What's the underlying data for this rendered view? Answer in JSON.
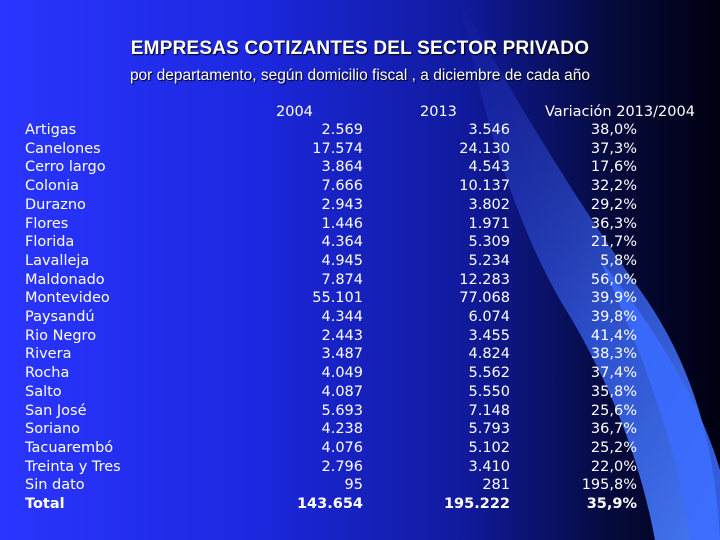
{
  "title": "EMPRESAS COTIZANTES DEL SECTOR PRIVADO",
  "subtitle": "por departamento, según domicilio fiscal , a diciembre de cada año",
  "columns": [
    "2004",
    "2013",
    "Variación 2013/2004"
  ],
  "rows": [
    {
      "dep": "Artigas",
      "a": "2.569",
      "b": "3.546",
      "c": "38,0%"
    },
    {
      "dep": "Canelones",
      "a": "17.574",
      "b": "24.130",
      "c": "37,3%"
    },
    {
      "dep": "Cerro largo",
      "a": "3.864",
      "b": "4.543",
      "c": "17,6%"
    },
    {
      "dep": "Colonia",
      "a": "7.666",
      "b": "10.137",
      "c": "32,2%"
    },
    {
      "dep": "Durazno",
      "a": "2.943",
      "b": "3.802",
      "c": "29,2%"
    },
    {
      "dep": "Flores",
      "a": "1.446",
      "b": "1.971",
      "c": "36,3%"
    },
    {
      "dep": "Florida",
      "a": "4.364",
      "b": "5.309",
      "c": "21,7%"
    },
    {
      "dep": "Lavalleja",
      "a": "4.945",
      "b": "5.234",
      "c": "5,8%"
    },
    {
      "dep": "Maldonado",
      "a": "7.874",
      "b": "12.283",
      "c": "56,0%"
    },
    {
      "dep": "Montevideo",
      "a": "55.101",
      "b": "77.068",
      "c": "39,9%"
    },
    {
      "dep": "Paysandú",
      "a": "4.344",
      "b": "6.074",
      "c": "39,8%"
    },
    {
      "dep": "Rio Negro",
      "a": "2.443",
      "b": "3.455",
      "c": "41,4%"
    },
    {
      "dep": "Rivera",
      "a": "3.487",
      "b": "4.824",
      "c": "38,3%"
    },
    {
      "dep": "Rocha",
      "a": "4.049",
      "b": "5.562",
      "c": "37,4%"
    },
    {
      "dep": "Salto",
      "a": "4.087",
      "b": "5.550",
      "c": "35,8%"
    },
    {
      "dep": "San José",
      "a": "5.693",
      "b": "7.148",
      "c": "25,6%"
    },
    {
      "dep": "Soriano",
      "a": "4.238",
      "b": "5.793",
      "c": "36,7%"
    },
    {
      "dep": "Tacuarembó",
      "a": "4.076",
      "b": "5.102",
      "c": "25,2%"
    },
    {
      "dep": "Treinta y Tres",
      "a": "2.796",
      "b": "3.410",
      "c": "22,0%"
    },
    {
      "dep": "Sin dato",
      "a": "95",
      "b": "281",
      "c": "195,8%"
    }
  ],
  "total": {
    "dep": "Total",
    "a": "143.654",
    "b": "195.222",
    "c": "35,9%"
  }
}
